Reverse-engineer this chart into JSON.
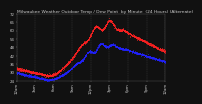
{
  "title": "Milwaukee Weather Outdoor Temp / Dew Point  by Minute  (24 Hours) (Alternate)",
  "title_fontsize": 3.2,
  "background_color": "#111111",
  "plot_bg_color": "#111111",
  "grid_color": "#555555",
  "temp_color": "#ff2222",
  "dew_color": "#2222ff",
  "ylim": [
    24,
    72
  ],
  "xlim": [
    0,
    1440
  ],
  "yticks": [
    24,
    30,
    36,
    42,
    48,
    54,
    60,
    66,
    72
  ],
  "ytick_labels": [
    "24",
    "30",
    "36",
    "42",
    "48",
    "54",
    "60",
    "66",
    "72"
  ],
  "xtick_hours": [
    0,
    3,
    6,
    9,
    12,
    15,
    18,
    21,
    24
  ],
  "xtick_labels": [
    "12am",
    "3am",
    "6am",
    "9am",
    "12pm",
    "3pm",
    "6pm",
    "9pm",
    "12am"
  ],
  "ylabel_fontsize": 2.8,
  "xlabel_fontsize": 2.8,
  "marker_size": 0.25,
  "temp_data_key": "temp",
  "dew_data_key": "dew"
}
